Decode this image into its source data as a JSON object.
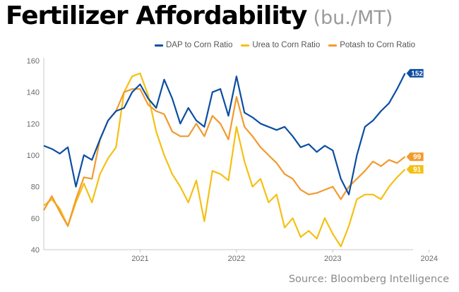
{
  "chart_data": {
    "type": "line",
    "title": "Fertilizer Affordability",
    "subtitle": "(bu./MT)",
    "source": "Source: Bloomberg Intelligence",
    "xlabel": "",
    "ylabel": "",
    "ylim": [
      40,
      160
    ],
    "yticks": [
      40,
      60,
      80,
      100,
      120,
      140,
      160
    ],
    "xlim": [
      "2020-07",
      "2024-05"
    ],
    "xticks": [
      "2021",
      "2022",
      "2023",
      "2024"
    ],
    "legend_position": "top-right",
    "grid": false,
    "x": [
      "2020-07",
      "2020-08",
      "2020-09",
      "2020-10",
      "2020-11",
      "2020-12",
      "2021-01",
      "2021-02",
      "2021-03",
      "2021-04",
      "2021-05",
      "2021-06",
      "2021-07",
      "2021-08",
      "2021-09",
      "2021-10",
      "2021-11",
      "2021-12",
      "2022-01",
      "2022-02",
      "2022-03",
      "2022-04",
      "2022-05",
      "2022-06",
      "2022-07",
      "2022-08",
      "2022-09",
      "2022-10",
      "2022-11",
      "2022-12",
      "2023-01",
      "2023-02",
      "2023-03",
      "2023-04",
      "2023-05",
      "2023-06",
      "2023-07",
      "2023-08",
      "2023-09",
      "2023-10",
      "2023-11",
      "2023-12",
      "2024-01",
      "2024-02",
      "2024-03",
      "2024-04"
    ],
    "series": [
      {
        "name": "DAP to Corn Ratio",
        "color": "#0b4ea2",
        "end_label": "152",
        "values": [
          106,
          104,
          101,
          105,
          80,
          100,
          97,
          110,
          122,
          128,
          130,
          140,
          145,
          136,
          130,
          148,
          136,
          120,
          130,
          122,
          118,
          140,
          142,
          125,
          150,
          127,
          124,
          120,
          118,
          116,
          118,
          112,
          105,
          107,
          102,
          106,
          103,
          85,
          75,
          100,
          118,
          122,
          128,
          133,
          142,
          152
        ]
      },
      {
        "name": "Urea to Corn Ratio",
        "color": "#f5c014",
        "end_label": "91",
        "values": [
          68,
          72,
          66,
          55,
          70,
          82,
          70,
          88,
          98,
          105,
          140,
          150,
          152,
          138,
          115,
          100,
          88,
          80,
          70,
          84,
          58,
          90,
          88,
          84,
          118,
          96,
          80,
          85,
          70,
          75,
          54,
          60,
          48,
          52,
          47,
          60,
          50,
          42,
          55,
          72,
          75,
          75,
          72,
          80,
          86,
          91
        ]
      },
      {
        "name": "Potash to Corn Ratio",
        "color": "#f29a2e",
        "end_label": "99",
        "values": [
          65,
          74,
          64,
          55,
          72,
          86,
          85,
          110,
          122,
          128,
          140,
          142,
          142,
          132,
          128,
          126,
          115,
          112,
          112,
          120,
          112,
          125,
          120,
          110,
          137,
          118,
          112,
          105,
          100,
          95,
          88,
          85,
          78,
          75,
          76,
          78,
          80,
          72,
          80,
          85,
          90,
          96,
          93,
          97,
          95,
          99
        ]
      }
    ]
  }
}
